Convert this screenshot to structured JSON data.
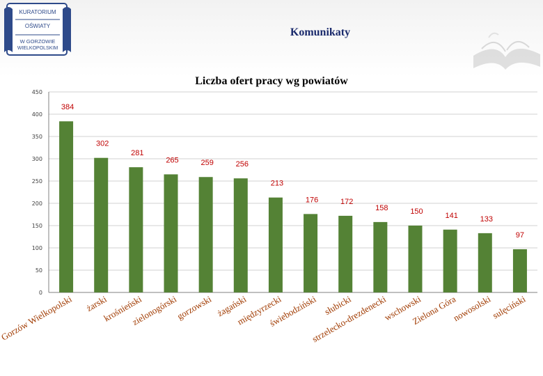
{
  "header": {
    "logo_lines": [
      "KURATORIUM",
      "OŚWIATY",
      "W GORZOWIE",
      "WIELKOPOLSKIM"
    ],
    "slide_title": "Komunikaty"
  },
  "colors": {
    "bar": "#548235",
    "label": "#c00000",
    "axis": "#404040",
    "title_blue": "#1a2a6c"
  },
  "chart_data": {
    "type": "bar",
    "title": "Liczba ofert pracy wg powiatów",
    "xlabel": "",
    "ylabel": "",
    "ylim": [
      0,
      450
    ],
    "yticks": [
      0,
      50,
      100,
      150,
      200,
      250,
      300,
      350,
      400,
      450
    ],
    "grid": true,
    "categories": [
      "Gorzów Wielkopolski",
      "żarski",
      "krośnieński",
      "zielonogórski",
      "gorzowski",
      "żagański",
      "międzyrzecki",
      "świebodziński",
      "słubicki",
      "strzelecko-drezdenecki",
      "wschowski",
      "Zielona Góra",
      "nowosolski",
      "sulęciński"
    ],
    "values": [
      384,
      302,
      281,
      265,
      259,
      256,
      213,
      176,
      172,
      158,
      150,
      141,
      133,
      97
    ]
  }
}
